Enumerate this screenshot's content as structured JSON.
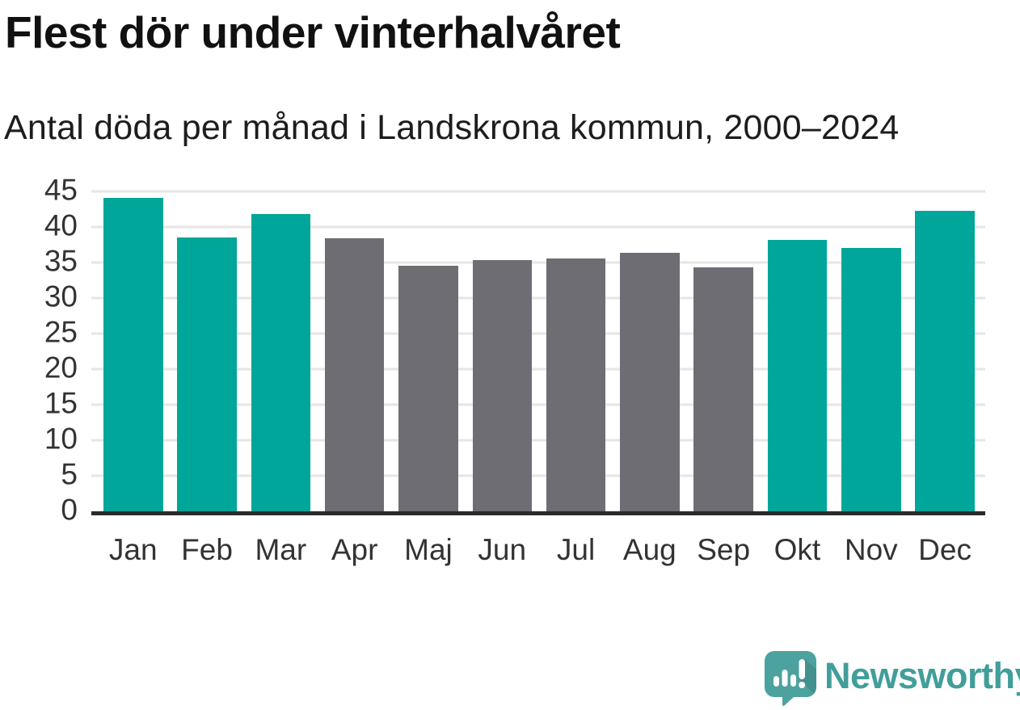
{
  "header": {
    "title": "Flest dör under vinterhalvåret",
    "subtitle": "Antal döda per månad i Landskrona kommun, 2000–2024"
  },
  "chart_data": {
    "type": "bar",
    "title": "Flest dör under vinterhalvåret",
    "subtitle": "Antal döda per månad i Landskrona kommun, 2000–2024",
    "categories": [
      "Jan",
      "Feb",
      "Mar",
      "Apr",
      "Maj",
      "Jun",
      "Jul",
      "Aug",
      "Sep",
      "Okt",
      "Nov",
      "Dec"
    ],
    "values": [
      44.1,
      38.5,
      41.8,
      38.4,
      34.6,
      35.3,
      35.6,
      36.4,
      34.3,
      38.2,
      37.0,
      42.3
    ],
    "highlighted": [
      true,
      true,
      true,
      false,
      false,
      false,
      false,
      false,
      false,
      true,
      true,
      true
    ],
    "colors": {
      "highlight": "#00A69A",
      "base": "#6E6D73",
      "gridline": "#E6E6E6",
      "axis": "#2B2B2B",
      "tick_text": "#333333"
    },
    "xlabel": "",
    "ylabel": "",
    "ylim": [
      0,
      45
    ],
    "yticks": [
      0,
      5,
      10,
      15,
      20,
      25,
      30,
      35,
      40,
      45
    ],
    "grid": true,
    "legend": "none"
  },
  "footer": {
    "brand": "Newsworthy",
    "brand_color": "#419E9A",
    "icon": "newsworthy-speech-bubble-bar-chart-icon",
    "icon_colors": {
      "bubble": "#4BA29F",
      "shadow": "#3E918E",
      "glyphs": "#FFFFFF"
    }
  }
}
